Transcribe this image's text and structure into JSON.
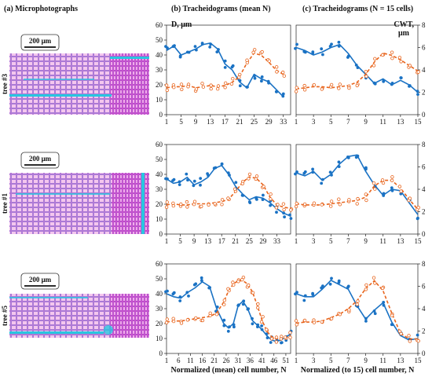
{
  "figure": {
    "panel_titles": [
      "(a) Microphotographs",
      "(b) Tracheidograms (mean N)",
      "(c) Tracheidograms (N = 15 cells)"
    ],
    "left_axis_label": "D, μm",
    "right_axis_label_1": "CWT,",
    "right_axis_label_2": "μm",
    "xlabel_b": "Normalized (mean) cell number, N",
    "xlabel_c": "Normalized (to 15) cell number, N"
  },
  "colors": {
    "diameter": "#1a72c4",
    "wall": "#e8641c",
    "micro_bg": "#e48ad8",
    "micro_line": "#6d5ad0",
    "ray": "#28c6e0"
  },
  "micrographs": [
    {
      "tree": "tree #3",
      "scale": "200 μm"
    },
    {
      "tree": "tree #1",
      "scale": "200 μm"
    },
    {
      "tree": "tree #5",
      "scale": "200 μm"
    }
  ],
  "chart_data": [
    {
      "type": "scatter",
      "row": 1,
      "panel": "b",
      "xlim": [
        1,
        35
      ],
      "ylim": [
        0,
        60
      ],
      "ylim_right": [
        0,
        8
      ],
      "xticks": [
        1,
        5,
        9,
        13,
        17,
        21,
        25,
        29,
        33
      ],
      "yticks": [
        0,
        10,
        20,
        30,
        40,
        50,
        60
      ],
      "series": [
        {
          "axis": "left",
          "style": "solid",
          "x": [
            1,
            3,
            5,
            7,
            9,
            11,
            13,
            15,
            17,
            19,
            21,
            23,
            25,
            27,
            29,
            31,
            33
          ],
          "y": [
            43,
            46,
            40,
            42,
            44,
            47,
            48,
            44,
            34,
            30,
            22,
            18,
            27,
            24,
            22,
            17,
            12
          ]
        },
        {
          "axis": "right",
          "style": "dashed",
          "x": [
            1,
            3,
            5,
            7,
            9,
            11,
            13,
            15,
            17,
            19,
            21,
            23,
            25,
            27,
            29,
            31,
            33
          ],
          "y": [
            2.4,
            2.5,
            2.5,
            2.6,
            2.4,
            2.5,
            2.6,
            2.5,
            2.6,
            2.9,
            3.4,
            4.6,
            5.5,
            5.3,
            4.7,
            4.0,
            3.6
          ]
        }
      ]
    },
    {
      "type": "scatter",
      "row": 1,
      "panel": "c",
      "xlim": [
        1,
        15
      ],
      "ylim": [
        0,
        60
      ],
      "ylim_right": [
        0,
        8
      ],
      "xticks": [
        1,
        3,
        5,
        7,
        9,
        11,
        13,
        15
      ],
      "yticks_right": [
        0,
        2,
        4,
        6,
        8
      ],
      "series": [
        {
          "axis": "left",
          "style": "solid",
          "x": [
            1,
            2,
            3,
            4,
            5,
            6,
            7,
            8,
            9,
            10,
            11,
            12,
            13,
            14,
            15
          ],
          "y": [
            45,
            43,
            40,
            42,
            45,
            47,
            41,
            33,
            27,
            21,
            24,
            20,
            23,
            20,
            15
          ]
        },
        {
          "axis": "right",
          "style": "dashed",
          "x": [
            1,
            2,
            3,
            4,
            5,
            6,
            7,
            8,
            9,
            10,
            11,
            12,
            13,
            14,
            15
          ],
          "y": [
            2.3,
            2.4,
            2.5,
            2.5,
            2.4,
            2.5,
            2.6,
            2.9,
            3.6,
            4.7,
            5.5,
            5.3,
            4.9,
            4.4,
            3.9
          ]
        }
      ]
    },
    {
      "type": "scatter",
      "row": 2,
      "panel": "b",
      "xlim": [
        1,
        37
      ],
      "ylim": [
        0,
        60
      ],
      "ylim_right": [
        0,
        8
      ],
      "xticks": [
        1,
        5,
        9,
        13,
        17,
        21,
        25,
        29,
        33
      ],
      "yticks": [
        0,
        10,
        20,
        30,
        40,
        50,
        60
      ],
      "series": [
        {
          "axis": "left",
          "style": "solid",
          "x": [
            1,
            3,
            5,
            7,
            9,
            11,
            13,
            15,
            17,
            19,
            21,
            23,
            25,
            27,
            29,
            31,
            33,
            35,
            37
          ],
          "y": [
            37,
            34,
            35,
            38,
            33,
            35,
            38,
            44,
            46,
            40,
            32,
            27,
            23,
            25,
            24,
            21,
            17,
            14,
            12
          ]
        },
        {
          "axis": "right",
          "style": "dashed",
          "x": [
            1,
            3,
            5,
            7,
            9,
            11,
            13,
            15,
            17,
            19,
            21,
            23,
            25,
            27,
            29,
            31,
            33,
            35,
            37
          ],
          "y": [
            2.6,
            2.7,
            2.6,
            2.6,
            2.7,
            2.7,
            2.7,
            2.8,
            2.9,
            3.1,
            3.8,
            4.6,
            5.1,
            5.0,
            4.4,
            3.3,
            2.6,
            2.4,
            2.3
          ]
        }
      ]
    },
    {
      "type": "scatter",
      "row": 2,
      "panel": "c",
      "xlim": [
        1,
        15
      ],
      "ylim": [
        0,
        60
      ],
      "ylim_right": [
        0,
        8
      ],
      "xticks": [
        1,
        3,
        5,
        7,
        9,
        11,
        13,
        15
      ],
      "yticks_right": [
        0,
        2,
        4,
        6,
        8
      ],
      "series": [
        {
          "axis": "left",
          "style": "solid",
          "x": [
            1,
            2,
            3,
            4,
            5,
            6,
            7,
            8,
            9,
            10,
            11,
            12,
            13,
            14,
            15
          ],
          "y": [
            41,
            39,
            42,
            36,
            40,
            47,
            52,
            53,
            42,
            33,
            26,
            30,
            29,
            21,
            13
          ]
        },
        {
          "axis": "right",
          "style": "dashed",
          "x": [
            1,
            2,
            3,
            4,
            5,
            6,
            7,
            8,
            9,
            10,
            11,
            12,
            13,
            14,
            15
          ],
          "y": [
            2.7,
            2.6,
            2.6,
            2.6,
            2.7,
            2.8,
            2.9,
            3.0,
            3.3,
            4.3,
            4.8,
            4.8,
            4.1,
            3.1,
            2.2
          ]
        }
      ]
    },
    {
      "type": "scatter",
      "row": 3,
      "panel": "b",
      "xlim": [
        1,
        53
      ],
      "ylim": [
        0,
        60
      ],
      "ylim_right": [
        0,
        8
      ],
      "xticks": [
        1,
        6,
        11,
        16,
        21,
        26,
        31,
        36,
        41,
        46,
        51
      ],
      "yticks": [
        0,
        10,
        20,
        30,
        40,
        50,
        60
      ],
      "series": [
        {
          "axis": "left",
          "style": "solid",
          "x": [
            1,
            4,
            7,
            10,
            13,
            16,
            19,
            22,
            25,
            27,
            29,
            31,
            33,
            35,
            37,
            39,
            41,
            43,
            45,
            47,
            49,
            51,
            53
          ],
          "y": [
            40,
            38,
            37,
            41,
            44,
            48,
            45,
            30,
            20,
            17,
            20,
            32,
            35,
            30,
            22,
            19,
            16,
            12,
            9,
            8,
            9,
            11,
            13
          ]
        },
        {
          "axis": "right",
          "style": "dashed",
          "x": [
            1,
            4,
            7,
            10,
            13,
            16,
            19,
            22,
            25,
            27,
            29,
            31,
            33,
            35,
            37,
            39,
            41,
            43,
            45,
            47,
            49,
            51,
            53
          ],
          "y": [
            2.8,
            2.9,
            2.9,
            3.0,
            3.1,
            3.2,
            3.3,
            3.6,
            4.6,
            5.6,
            6.2,
            6.5,
            6.5,
            6.2,
            5.5,
            4.3,
            3.0,
            2.0,
            1.5,
            1.3,
            1.3,
            1.4,
            1.6
          ]
        }
      ]
    },
    {
      "type": "scatter",
      "row": 3,
      "panel": "c",
      "xlim": [
        1,
        15
      ],
      "ylim": [
        0,
        60
      ],
      "ylim_right": [
        0,
        8
      ],
      "xticks": [
        1,
        3,
        5,
        7,
        9,
        11,
        13,
        15
      ],
      "yticks_right": [
        0,
        2,
        4,
        6,
        8
      ],
      "series": [
        {
          "axis": "left",
          "style": "solid",
          "x": [
            1,
            2,
            3,
            4,
            5,
            6,
            7,
            8,
            9,
            10,
            11,
            12,
            13,
            14,
            15
          ],
          "y": [
            40,
            38,
            38,
            43,
            49,
            46,
            43,
            32,
            23,
            29,
            34,
            21,
            12,
            9,
            10
          ]
        },
        {
          "axis": "right",
          "style": "dashed",
          "x": [
            1,
            2,
            3,
            4,
            5,
            6,
            7,
            8,
            9,
            10,
            11,
            12,
            13,
            14,
            15
          ],
          "y": [
            2.7,
            2.8,
            2.8,
            2.9,
            3.2,
            3.5,
            4.0,
            4.7,
            5.8,
            6.5,
            5.6,
            3.6,
            1.8,
            1.3,
            1.3
          ]
        }
      ]
    }
  ]
}
